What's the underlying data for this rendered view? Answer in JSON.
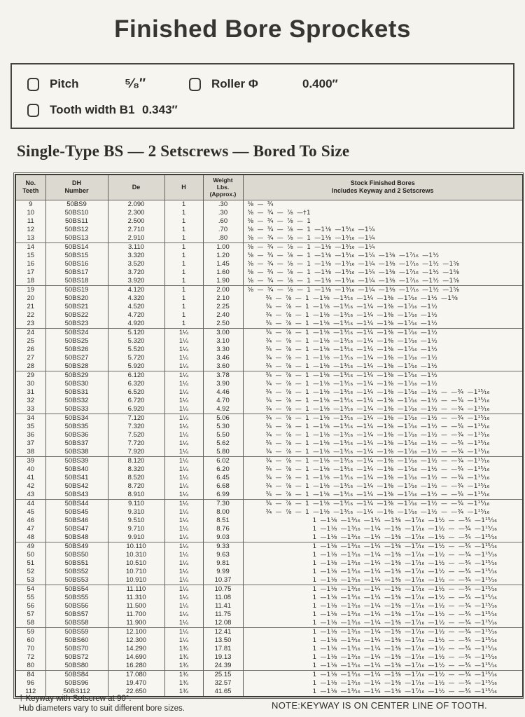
{
  "page": {
    "title": "Finished Bore Sprockets"
  },
  "specs": {
    "pitch": {
      "label": "Pitch",
      "value": "⁵⁄₈″"
    },
    "roller": {
      "label": "Roller Φ",
      "value": "0.400″"
    },
    "tooth": {
      "label": "Tooth width B1",
      "value": "0.343″"
    }
  },
  "section": {
    "heading": "Single-Type  BS — 2 Setscrews — Bored To Size"
  },
  "table": {
    "headers": {
      "teeth": "No.\nTeeth",
      "number": "DH\nNumber",
      "de": "De",
      "h": "H",
      "weight": "Weight\nLbs.\n(Approx.)",
      "bores": "Stock Finished Bores\nIncludes Keyway and 2 Setscrews"
    },
    "row_fields": [
      "teeth",
      "dh_number",
      "de",
      "h",
      "weight_lbs",
      "stock_finished_bores"
    ],
    "rows": [
      [
        "9",
        "50BS9",
        "2.090",
        "1",
        ".30",
        "⅝ — ¾"
      ],
      [
        "10",
        "50BS10",
        "2.300",
        "1",
        ".30",
        "⅝ — ¾ — ⅞ —†1"
      ],
      [
        "11",
        "50BS11",
        "2.500",
        "1",
        ".60",
        "⅝ — ¾ — ⅞ — 1"
      ],
      [
        "12",
        "50BS12",
        "2.710",
        "1",
        ".70",
        "⅝ — ¾ — ⅞ — 1 —1⅛ —1³⁄₁₆ —1¼"
      ],
      [
        "13",
        "50BS13",
        "2.910",
        "1",
        ".80",
        "⅝ — ¾ — ⅞ — 1 —1⅛ —1³⁄₁₆ —1¼"
      ],
      [
        "14",
        "50BS14",
        "3.110",
        "1",
        "1.00",
        "⅝ — ¾ — ⅞ — 1 —1⅛ —1³⁄₁₆ —1¼"
      ],
      [
        "15",
        "50BS15",
        "3.320",
        "1",
        "1.20",
        "⅝ — ¾ — ⅞ — 1 —1⅛ —1³⁄₁₆ —1¼ —1⅜ —1⁷⁄₁₆ —1½"
      ],
      [
        "16",
        "50BS16",
        "3.520",
        "1",
        "1.45",
        "⅝ — ¾ — ⅞ — 1 —1⅛ —1³⁄₁₆ —1¼ —1⅜ —1⁷⁄₁₆ —1½ —1⅝"
      ],
      [
        "17",
        "50BS17",
        "3.720",
        "1",
        "1.60",
        "⅝ — ¾ — ⅞ — 1 —1⅛ —1³⁄₁₆ —1¼ —1⅜ —1⁷⁄₁₆ —1½ —1⅝"
      ],
      [
        "18",
        "50BS18",
        "3.920",
        "1",
        "1.90",
        "⅝ — ¾ — ⅞ — 1 —1⅛ —1³⁄₁₆ —1¼ —1⅜ —1⁷⁄₁₆ —1½ —1⅝"
      ],
      [
        "19",
        "50BS19",
        "4.120",
        "1",
        "2.00",
        "⅝ — ¾ — ⅞ — 1 —1⅛ —1³⁄₁₆ —1¼ —1⅜ —1⁷⁄₁₆ —1½ —1⅝"
      ],
      [
        "20",
        "50BS20",
        "4.320",
        "1",
        "2.10",
        "¾ — ⅞ — 1 —1⅛ —1³⁄₁₆ —1¼ —1⅜ —1⁷⁄₁₆ —1½ —1⅝"
      ],
      [
        "21",
        "50BS21",
        "4.520",
        "1",
        "2.25",
        "¾ — ⅞ — 1 —1⅛ —1³⁄₁₆ —1¼ —1⅜ —1⁷⁄₁₆ —1½"
      ],
      [
        "22",
        "50BS22",
        "4.720",
        "1",
        "2.40",
        "¾ — ⅞ — 1 —1⅛ —1³⁄₁₆ —1¼ —1⅜ —1⁷⁄₁₆ —1½"
      ],
      [
        "23",
        "50BS23",
        "4.920",
        "1",
        "2.50",
        "¾ — ⅞ — 1 —1⅛ —1³⁄₁₆ —1¼ —1⅜ —1⁷⁄₁₆ —1½"
      ],
      [
        "24",
        "50BS24",
        "5.120",
        "1¼",
        "3.00",
        "¾ — ⅞ — 1 —1⅛ —1³⁄₁₆ —1¼ —1⅜ —1⁷⁄₁₆ —1½"
      ],
      [
        "25",
        "50BS25",
        "5.320",
        "1¼",
        "3.10",
        "¾ — ⅞ — 1 —1⅛ —1³⁄₁₆ —1¼ —1⅜ —1⁷⁄₁₆ —1½"
      ],
      [
        "26",
        "50BS26",
        "5.520",
        "1¼",
        "3.30",
        "¾ — ⅞ — 1 —1⅛ —1³⁄₁₆ —1¼ —1⅜ —1⁷⁄₁₆ —1½"
      ],
      [
        "27",
        "50BS27",
        "5.720",
        "1¼",
        "3.46",
        "¾ — ⅞ — 1 —1⅛ —1³⁄₁₆ —1¼ —1⅜ —1⁷⁄₁₆ —1½"
      ],
      [
        "28",
        "50BS28",
        "5.920",
        "1¼",
        "3.60",
        "¾ — ⅞ — 1 —1⅛ —1³⁄₁₆ —1¼ —1⅜ —1⁷⁄₁₆ —1½"
      ],
      [
        "29",
        "50BS29",
        "6.120",
        "1¼",
        "3.78",
        "¾ — ⅞ — 1 —1⅛ —1³⁄₁₆ —1¼ —1⅜ —1⁷⁄₁₆ —1½"
      ],
      [
        "30",
        "50BS30",
        "6.320",
        "1¼",
        "3.90",
        "¾ — ⅞ — 1 —1⅛ —1³⁄₁₆ —1¼ —1⅜ —1⁷⁄₁₆ —1½"
      ],
      [
        "31",
        "50BS31",
        "6.520",
        "1¼",
        "4.46",
        "¾ — ⅞ — 1 —1⅛ —1³⁄₁₆ —1¼ —1⅜ —1⁷⁄₁₆ —1½ — —¾ —1¹⁵⁄₁₆"
      ],
      [
        "32",
        "50BS32",
        "6.720",
        "1¼",
        "4.70",
        "¾ — ⅞ — 1 —1⅛ —1³⁄₁₆ —1¼ —1⅜ —1⁷⁄₁₆ —1½ — —¾ —1¹⁵⁄₁₆"
      ],
      [
        "33",
        "50BS33",
        "6.920",
        "1¼",
        "4.92",
        "¾ — ⅞ — 1 —1⅛ —1³⁄₁₆ —1¼ —1⅜ —1⁷⁄₁₆ —1½ — —¾ —1¹⁵⁄₁₆"
      ],
      [
        "34",
        "50BS34",
        "7.120",
        "1¼",
        "5.06",
        "¾ — ⅞ — 1 —1⅛ —1³⁄₁₆ —1¼ —1⅜ —1⁷⁄₁₆ —1½ — —¾ —1¹⁵⁄₁₆"
      ],
      [
        "35",
        "50BS35",
        "7.320",
        "1¼",
        "5.30",
        "¾ — ⅞ — 1 —1⅛ —1³⁄₁₆ —1¼ —1⅜ —1⁷⁄₁₆ —1½ — —¾ —1¹⁵⁄₁₆"
      ],
      [
        "36",
        "50BS36",
        "7.520",
        "1¼",
        "5.50",
        "¾ — ⅞ — 1 —1⅛ —1³⁄₁₆ —1¼ —1⅜ —1⁷⁄₁₆ —1½ — —¾ —1¹⁵⁄₁₆"
      ],
      [
        "37",
        "50BS37",
        "7.720",
        "1¼",
        "5.62",
        "¾ — ⅞ — 1 —1⅛ —1³⁄₁₆ —1¼ —1⅜ —1⁷⁄₁₆ —1½ — —¾ —1¹⁵⁄₁₆"
      ],
      [
        "38",
        "50BS38",
        "7.920",
        "1¼",
        "5.80",
        "¾ — ⅞ — 1 —1⅛ —1³⁄₁₆ —1¼ —1⅜ —1⁷⁄₁₆ —1½ — —¾ —1¹⁵⁄₁₆"
      ],
      [
        "39",
        "50BS39",
        "8.120",
        "1¼",
        "6.02",
        "¾ — ⅞ — 1 —1⅛ —1³⁄₁₆ —1¼ —1⅜ —1⁷⁄₁₆ —1½ — —¾ —1¹⁵⁄₁₆"
      ],
      [
        "40",
        "50BS40",
        "8.320",
        "1¼",
        "6.20",
        "¾ — ⅞ — 1 —1⅛ —1³⁄₁₆ —1¼ —1⅜ —1⁷⁄₁₆ —1½ — —¾ —1¹⁵⁄₁₆"
      ],
      [
        "41",
        "50BS41",
        "8.520",
        "1¼",
        "6.45",
        "¾ — ⅞ — 1 —1⅛ —1³⁄₁₆ —1¼ —1⅜ —1⁷⁄₁₆ —1½ — —¾ —1¹⁵⁄₁₆"
      ],
      [
        "42",
        "50BS42",
        "8.720",
        "1¼",
        "6.68",
        "¾ — ⅞ — 1 —1⅛ —1³⁄₁₆ —1¼ —1⅜ —1⁷⁄₁₆ —1½ — —¾ —1¹⁵⁄₁₆"
      ],
      [
        "43",
        "50BS43",
        "8.910",
        "1¼",
        "6.99",
        "¾ — ⅞ — 1 —1⅛ —1³⁄₁₆ —1¼ —1⅜ —1⁷⁄₁₆ —1½ — —¾ —1¹⁵⁄₁₆"
      ],
      [
        "44",
        "50BS44",
        "9.110",
        "1¼",
        "7.30",
        "¾ — ⅞ — 1 —1⅛ —1³⁄₁₆ —1¼ —1⅜ —1⁷⁄₁₆ —1½ — —¾ —1¹⁵⁄₁₆"
      ],
      [
        "45",
        "50BS45",
        "9.310",
        "1¼",
        "8.00",
        "¾ — ⅞ — 1 —1⅛ —1³⁄₁₆ —1¼ —1⅜ —1⁷⁄₁₆ —1½ — —¾ —1¹⁵⁄₁₆"
      ],
      [
        "46",
        "50BS46",
        "9.510",
        "1¼",
        "8.51",
        "1 —1⅛ —1³⁄₁₆ —1¼ —1⅜ —1⁷⁄₁₆ —1½ — —¾ —1¹⁵⁄₁₆"
      ],
      [
        "47",
        "50BS47",
        "9.710",
        "1¼",
        "8.76",
        "1 —1⅛ —1³⁄₁₆ —1¼ —1⅜ —1⁷⁄₁₆ —1½ — —¾ —1¹⁵⁄₁₆"
      ],
      [
        "48",
        "50BS48",
        "9.910",
        "1¼",
        "9.03",
        "1 —1⅛ —1³⁄₁₆ —1¼ —1⅜ —1⁷⁄₁₆ —1½ — —¾ —1¹⁵⁄₁₆"
      ],
      [
        "49",
        "50BS49",
        "10.110",
        "1¼",
        "9.33",
        "1 —1⅛ —1³⁄₁₆ —1¼ —1⅜ —1⁷⁄₁₆ —1½ — —¾ —1¹⁵⁄₁₆"
      ],
      [
        "50",
        "50BS50",
        "10.310",
        "1¼",
        "9.63",
        "1 —1⅛ —1³⁄₁₆ —1¼ —1⅜ —1⁷⁄₁₆ —1½ — —¾ —1¹⁵⁄₁₆"
      ],
      [
        "51",
        "50BS51",
        "10.510",
        "1¼",
        "9.81",
        "1 —1⅛ —1³⁄₁₆ —1¼ —1⅜ —1⁷⁄₁₆ —1½ — —¾ —1¹⁵⁄₁₆"
      ],
      [
        "52",
        "50BS52",
        "10.710",
        "1¼",
        "9.99",
        "1 —1⅛ —1³⁄₁₆ —1¼ —1⅜ —1⁷⁄₁₆ —1½ — —¾ —1¹⁵⁄₁₆"
      ],
      [
        "53",
        "50BS53",
        "10.910",
        "1¼",
        "10.37",
        "1 —1⅛ —1³⁄₁₆ —1¼ —1⅜ —1⁷⁄₁₆ —1½ — —¾ —1¹⁵⁄₁₆"
      ],
      [
        "54",
        "50BS54",
        "11.110",
        "1¼",
        "10.75",
        "1 —1⅛ —1³⁄₁₆ —1¼ —1⅜ —1⁷⁄₁₆ —1½ — —¾ —1¹⁵⁄₁₆"
      ],
      [
        "55",
        "50BS55",
        "11.310",
        "1¼",
        "11.08",
        "1 —1⅛ —1³⁄₁₆ —1¼ —1⅜ —1⁷⁄₁₆ —1½ — —¾ —1¹⁵⁄₁₆"
      ],
      [
        "56",
        "50BS56",
        "11.500",
        "1¼",
        "11.41",
        "1 —1⅛ —1³⁄₁₆ —1¼ —1⅜ —1⁷⁄₁₆ —1½ — —¾ —1¹⁵⁄₁₆"
      ],
      [
        "57",
        "50BS57",
        "11.700",
        "1¼",
        "11.75",
        "1 —1⅛ —1³⁄₁₆ —1¼ —1⅜ —1⁷⁄₁₆ —1½ — —¾ —1¹⁵⁄₁₆"
      ],
      [
        "58",
        "50BS58",
        "11.900",
        "1¼",
        "12.08",
        "1 —1⅛ —1³⁄₁₆ —1¼ —1⅜ —1⁷⁄₁₆ —1½ — —¾ —1¹⁵⁄₁₆"
      ],
      [
        "59",
        "50BS59",
        "12.100",
        "1¼",
        "12.41",
        "1 —1⅛ —1³⁄₁₆ —1¼ —1⅜ —1⁷⁄₁₆ —1½ — —¾ —1¹⁵⁄₁₆"
      ],
      [
        "60",
        "50BS60",
        "12.300",
        "1¼",
        "13.50",
        "1 —1⅛ —1³⁄₁₆ —1¼ —1⅜ —1⁷⁄₁₆ —1½ — —¾ —1¹⁵⁄₁₆"
      ],
      [
        "70",
        "50BS70",
        "14.290",
        "1¾",
        "17.81",
        "1 —1⅛ —1³⁄₁₆ —1¼ —1⅜ —1⁷⁄₁₆ —1½ — —¾ —1¹⁵⁄₁₆"
      ],
      [
        "72",
        "50BS72",
        "14.690",
        "1¾",
        "19.13",
        "1 —1⅛ —1³⁄₁₆ —1¼ —1⅜ —1⁷⁄₁₆ —1½ — —¾ —1¹⁵⁄₁₆"
      ],
      [
        "80",
        "50BS80",
        "16.280",
        "1¾",
        "24.39",
        "1 —1⅛ —1³⁄₁₆ —1¼ —1⅜ —1⁷⁄₁₆ —1½ — —¾ —1¹⁵⁄₁₆"
      ],
      [
        "84",
        "50BS84",
        "17.080",
        "1¾",
        "25.15",
        "1 —1⅛ —1³⁄₁₆ —1¼ —1⅜ —1⁷⁄₁₆ —1½ — —¾ —1¹⁵⁄₁₆"
      ],
      [
        "96",
        "50BS96",
        "19.470",
        "1¾",
        "32.57",
        "1 —1⅛ —1³⁄₁₆ —1¼ —1⅜ —1⁷⁄₁₆ —1½ — —¾ —1¹⁵⁄₁₆"
      ],
      [
        "112",
        "50BS112",
        "22.650",
        "1¾",
        "41.65",
        "1 —1⅛ —1³⁄₁₆ —1¼ —1⅜ —1⁷⁄₁₆ —1½ — —¾ —1¹⁵⁄₁₆"
      ]
    ],
    "group_size": 5
  },
  "footnotes": {
    "dagger": "† Keyway with Setscrew at 90°.",
    "hub": "Hub diameters vary to suit different bore sizes.",
    "note": "NOTE:KEYWAY IS ON CENTER LINE OF TOOTH."
  },
  "colors": {
    "paper": "#f5f3ee",
    "ink": "#2e2d2a",
    "table_header_bg": "#dcd9d1",
    "table_border": "#3b3a35"
  }
}
